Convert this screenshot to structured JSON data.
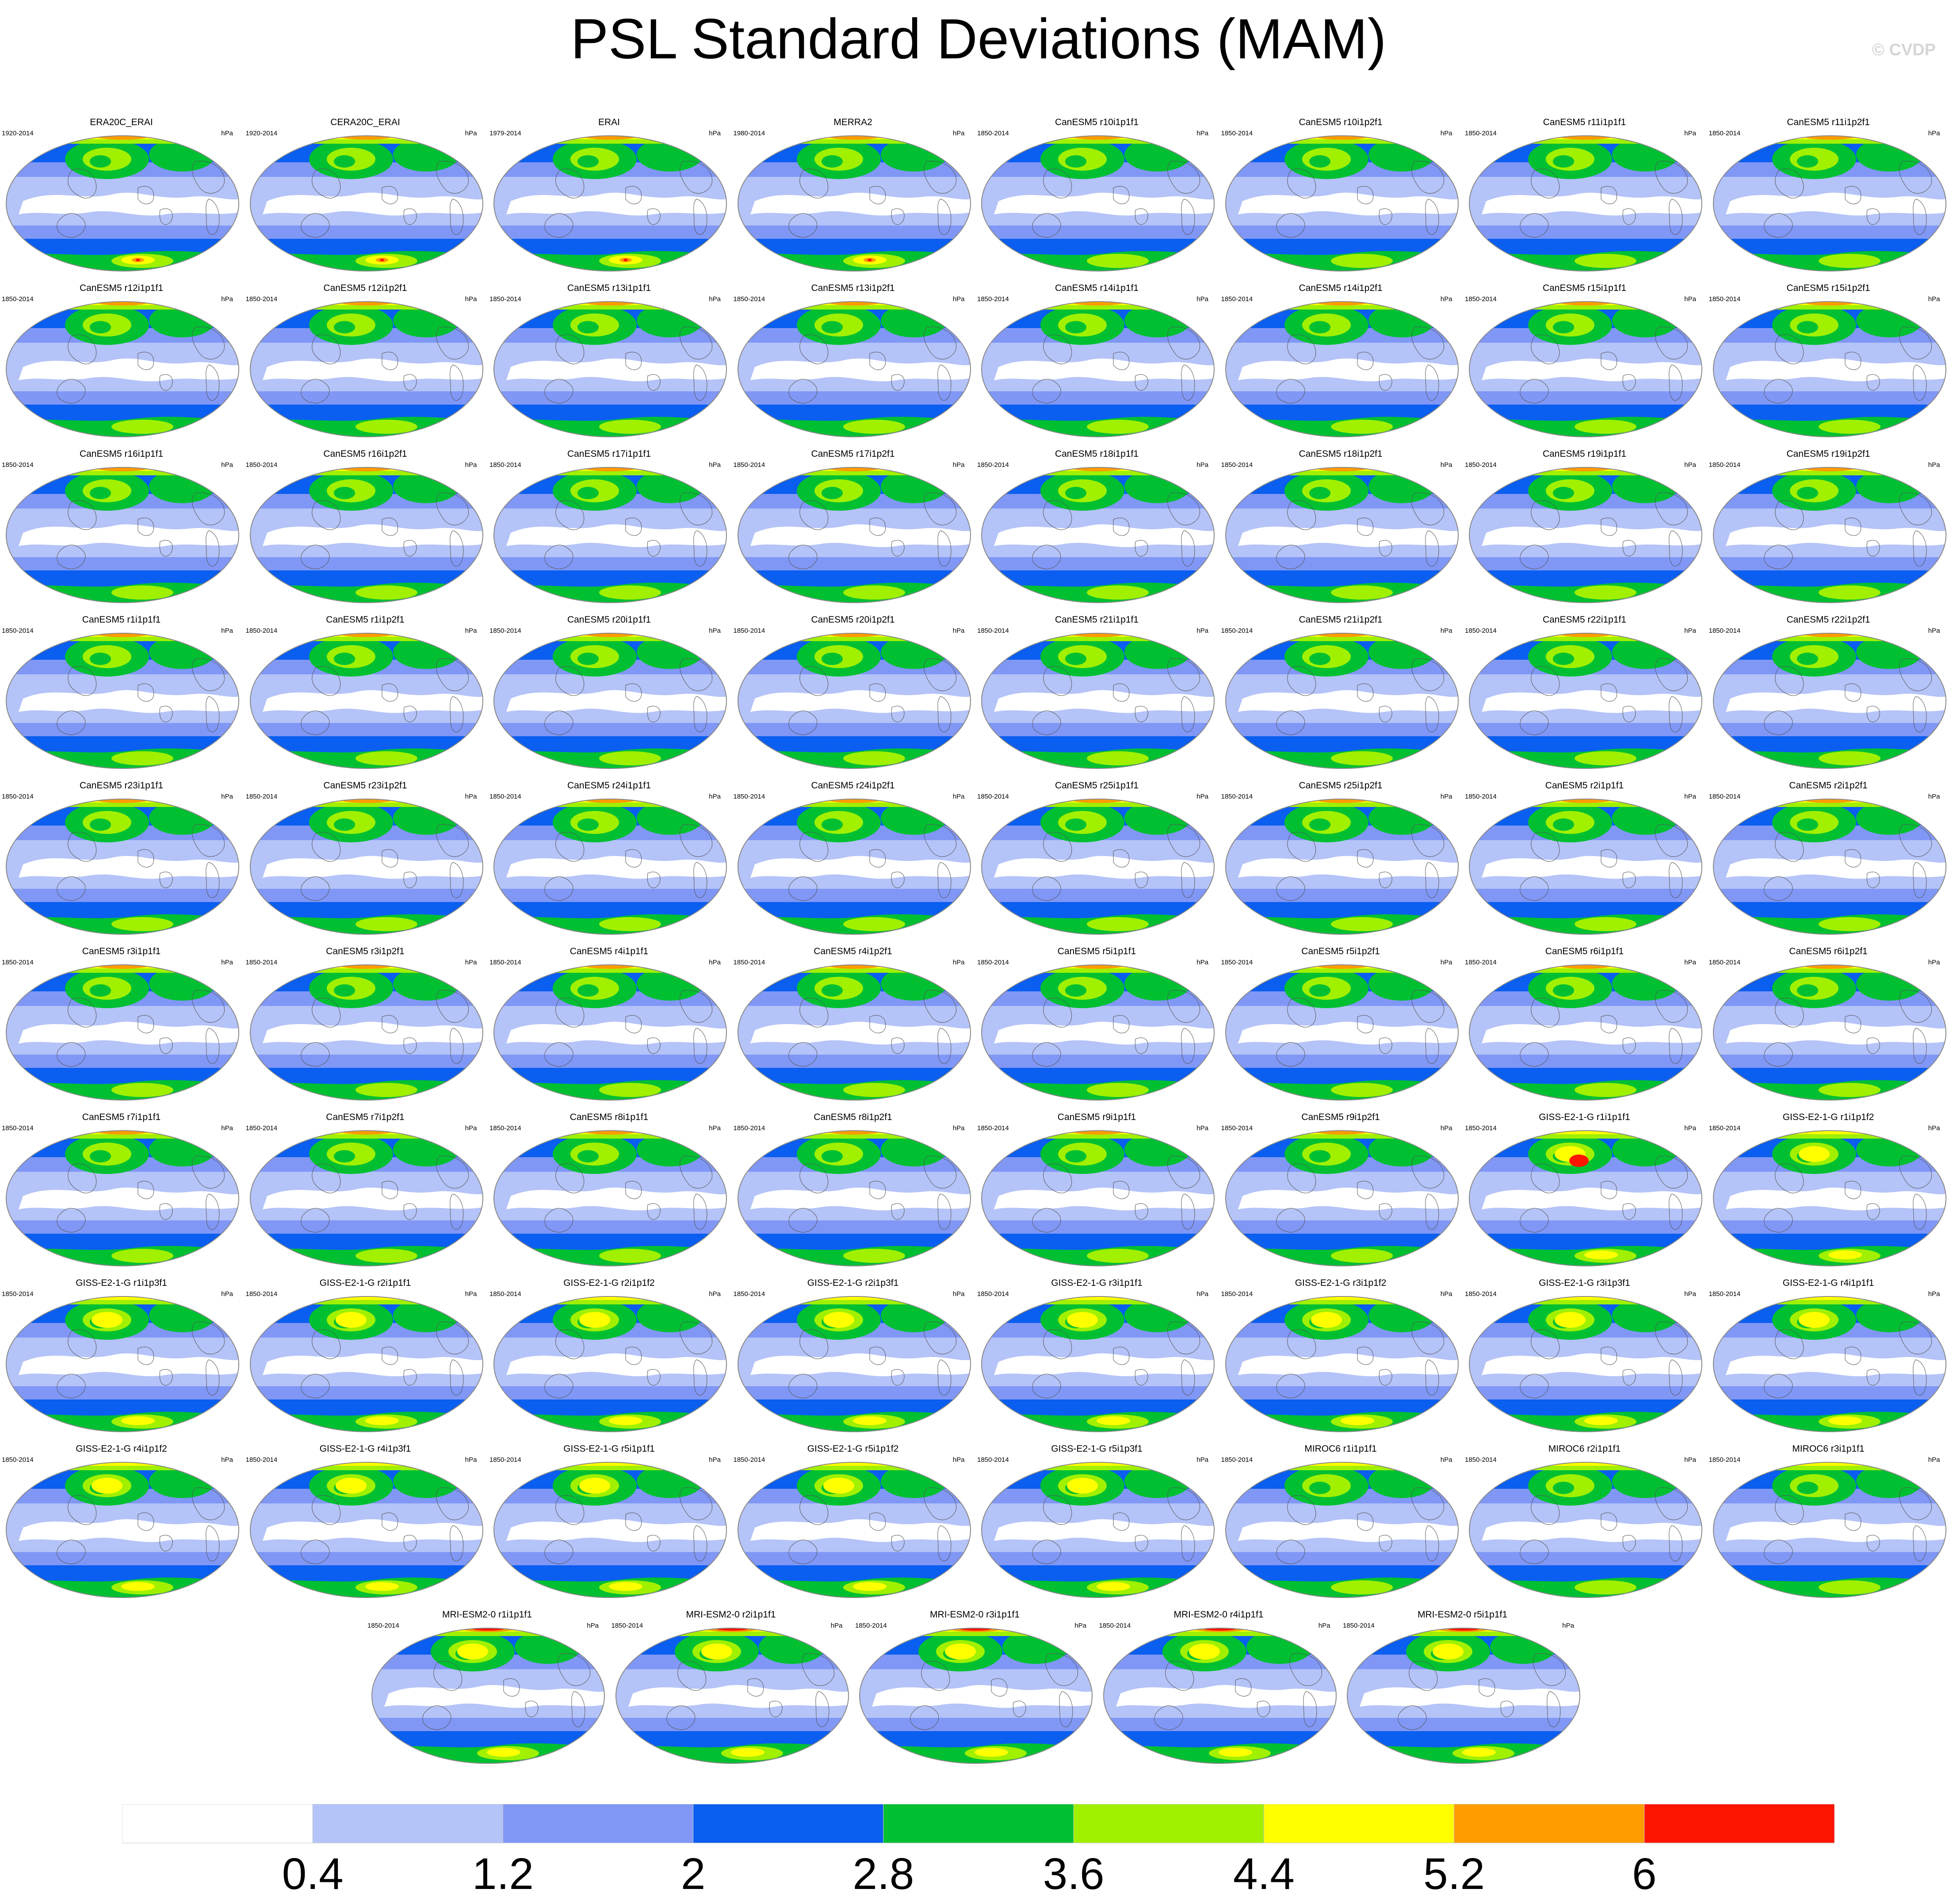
{
  "title": "PSL Standard Deviations (MAM)",
  "watermark": "© CVDP",
  "units": "hPa",
  "colorbar": {
    "colors": [
      "#ffffff",
      "#b4c3f8",
      "#8097f6",
      "#0a5ef0",
      "#00c032",
      "#a0f000",
      "#ffff00",
      "#ff9c00",
      "#ff1400"
    ],
    "labels": [
      "0.4",
      "1.2",
      "2",
      "2.8",
      "3.6",
      "4.4",
      "5.2",
      "6"
    ]
  },
  "panels": [
    {
      "name": "ERA20C_ERAI",
      "years": "1920-2014",
      "type": "obs"
    },
    {
      "name": "CERA20C_ERAI",
      "years": "1920-2014",
      "type": "obs"
    },
    {
      "name": "ERAI",
      "years": "1979-2014",
      "type": "obs"
    },
    {
      "name": "MERRA2",
      "years": "1980-2014",
      "type": "obs"
    },
    {
      "name": "CanESM5 r10i1p1f1",
      "years": "1850-2014",
      "type": "can"
    },
    {
      "name": "CanESM5 r10i1p2f1",
      "years": "1850-2014",
      "type": "can"
    },
    {
      "name": "CanESM5 r11i1p1f1",
      "years": "1850-2014",
      "type": "can"
    },
    {
      "name": "CanESM5 r11i1p2f1",
      "years": "1850-2014",
      "type": "can"
    },
    {
      "name": "CanESM5 r12i1p1f1",
      "years": "1850-2014",
      "type": "can"
    },
    {
      "name": "CanESM5 r12i1p2f1",
      "years": "1850-2014",
      "type": "can"
    },
    {
      "name": "CanESM5 r13i1p1f1",
      "years": "1850-2014",
      "type": "can"
    },
    {
      "name": "CanESM5 r13i1p2f1",
      "years": "1850-2014",
      "type": "can"
    },
    {
      "name": "CanESM5 r14i1p1f1",
      "years": "1850-2014",
      "type": "can"
    },
    {
      "name": "CanESM5 r14i1p2f1",
      "years": "1850-2014",
      "type": "can"
    },
    {
      "name": "CanESM5 r15i1p1f1",
      "years": "1850-2014",
      "type": "can"
    },
    {
      "name": "CanESM5 r15i1p2f1",
      "years": "1850-2014",
      "type": "can"
    },
    {
      "name": "CanESM5 r16i1p1f1",
      "years": "1850-2014",
      "type": "can"
    },
    {
      "name": "CanESM5 r16i1p2f1",
      "years": "1850-2014",
      "type": "can"
    },
    {
      "name": "CanESM5 r17i1p1f1",
      "years": "1850-2014",
      "type": "can"
    },
    {
      "name": "CanESM5 r17i1p2f1",
      "years": "1850-2014",
      "type": "can"
    },
    {
      "name": "CanESM5 r18i1p1f1",
      "years": "1850-2014",
      "type": "can"
    },
    {
      "name": "CanESM5 r18i1p2f1",
      "years": "1850-2014",
      "type": "can"
    },
    {
      "name": "CanESM5 r19i1p1f1",
      "years": "1850-2014",
      "type": "can"
    },
    {
      "name": "CanESM5 r19i1p2f1",
      "years": "1850-2014",
      "type": "can"
    },
    {
      "name": "CanESM5 r1i1p1f1",
      "years": "1850-2014",
      "type": "can"
    },
    {
      "name": "CanESM5 r1i1p2f1",
      "years": "1850-2014",
      "type": "can"
    },
    {
      "name": "CanESM5 r20i1p1f1",
      "years": "1850-2014",
      "type": "can"
    },
    {
      "name": "CanESM5 r20i1p2f1",
      "years": "1850-2014",
      "type": "can"
    },
    {
      "name": "CanESM5 r21i1p1f1",
      "years": "1850-2014",
      "type": "can"
    },
    {
      "name": "CanESM5 r21i1p2f1",
      "years": "1850-2014",
      "type": "can"
    },
    {
      "name": "CanESM5 r22i1p1f1",
      "years": "1850-2014",
      "type": "can"
    },
    {
      "name": "CanESM5 r22i1p2f1",
      "years": "1850-2014",
      "type": "can"
    },
    {
      "name": "CanESM5 r23i1p1f1",
      "years": "1850-2014",
      "type": "can"
    },
    {
      "name": "CanESM5 r23i1p2f1",
      "years": "1850-2014",
      "type": "can"
    },
    {
      "name": "CanESM5 r24i1p1f1",
      "years": "1850-2014",
      "type": "can"
    },
    {
      "name": "CanESM5 r24i1p2f1",
      "years": "1850-2014",
      "type": "can"
    },
    {
      "name": "CanESM5 r25i1p1f1",
      "years": "1850-2014",
      "type": "can"
    },
    {
      "name": "CanESM5 r25i1p2f1",
      "years": "1850-2014",
      "type": "can"
    },
    {
      "name": "CanESM5 r2i1p1f1",
      "years": "1850-2014",
      "type": "can"
    },
    {
      "name": "CanESM5 r2i1p2f1",
      "years": "1850-2014",
      "type": "can"
    },
    {
      "name": "CanESM5 r3i1p1f1",
      "years": "1850-2014",
      "type": "can"
    },
    {
      "name": "CanESM5 r3i1p2f1",
      "years": "1850-2014",
      "type": "can"
    },
    {
      "name": "CanESM5 r4i1p1f1",
      "years": "1850-2014",
      "type": "can"
    },
    {
      "name": "CanESM5 r4i1p2f1",
      "years": "1850-2014",
      "type": "can"
    },
    {
      "name": "CanESM5 r5i1p1f1",
      "years": "1850-2014",
      "type": "can"
    },
    {
      "name": "CanESM5 r5i1p2f1",
      "years": "1850-2014",
      "type": "can"
    },
    {
      "name": "CanESM5 r6i1p1f1",
      "years": "1850-2014",
      "type": "can"
    },
    {
      "name": "CanESM5 r6i1p2f1",
      "years": "1850-2014",
      "type": "can"
    },
    {
      "name": "CanESM5 r7i1p1f1",
      "years": "1850-2014",
      "type": "can"
    },
    {
      "name": "CanESM5 r7i1p2f1",
      "years": "1850-2014",
      "type": "can"
    },
    {
      "name": "CanESM5 r8i1p1f1",
      "years": "1850-2014",
      "type": "can"
    },
    {
      "name": "CanESM5 r8i1p2f1",
      "years": "1850-2014",
      "type": "can"
    },
    {
      "name": "CanESM5 r9i1p1f1",
      "years": "1850-2014",
      "type": "can"
    },
    {
      "name": "CanESM5 r9i1p2f1",
      "years": "1850-2014",
      "type": "can"
    },
    {
      "name": "GISS-E2-1-G r1i1p1f1",
      "years": "1850-2014",
      "type": "giss"
    },
    {
      "name": "GISS-E2-1-G r1i1p1f2",
      "years": "1850-2014",
      "type": "giss"
    },
    {
      "name": "GISS-E2-1-G r1i1p3f1",
      "years": "1850-2014",
      "type": "giss"
    },
    {
      "name": "GISS-E2-1-G r2i1p1f1",
      "years": "1850-2014",
      "type": "giss"
    },
    {
      "name": "GISS-E2-1-G r2i1p1f2",
      "years": "1850-2014",
      "type": "giss"
    },
    {
      "name": "GISS-E2-1-G r2i1p3f1",
      "years": "1850-2014",
      "type": "giss"
    },
    {
      "name": "GISS-E2-1-G r3i1p1f1",
      "years": "1850-2014",
      "type": "giss"
    },
    {
      "name": "GISS-E2-1-G r3i1p1f2",
      "years": "1850-2014",
      "type": "giss"
    },
    {
      "name": "GISS-E2-1-G r3i1p3f1",
      "years": "1850-2014",
      "type": "giss"
    },
    {
      "name": "GISS-E2-1-G r4i1p1f1",
      "years": "1850-2014",
      "type": "giss"
    },
    {
      "name": "GISS-E2-1-G r4i1p1f2",
      "years": "1850-2014",
      "type": "giss"
    },
    {
      "name": "GISS-E2-1-G r4i1p3f1",
      "years": "1850-2014",
      "type": "giss"
    },
    {
      "name": "GISS-E2-1-G r5i1p1f1",
      "years": "1850-2014",
      "type": "giss"
    },
    {
      "name": "GISS-E2-1-G r5i1p1f2",
      "years": "1850-2014",
      "type": "giss"
    },
    {
      "name": "GISS-E2-1-G r5i1p3f1",
      "years": "1850-2014",
      "type": "giss"
    },
    {
      "name": "MIROC6 r1i1p1f1",
      "years": "1850-2014",
      "type": "miroc"
    },
    {
      "name": "MIROC6 r2i1p1f1",
      "years": "1850-2014",
      "type": "miroc"
    },
    {
      "name": "MIROC6 r3i1p1f1",
      "years": "1850-2014",
      "type": "miroc"
    },
    {
      "name": "MRI-ESM2-0 r1i1p1f1",
      "years": "1850-2014",
      "type": "mri"
    },
    {
      "name": "MRI-ESM2-0 r2i1p1f1",
      "years": "1850-2014",
      "type": "mri"
    },
    {
      "name": "MRI-ESM2-0 r3i1p1f1",
      "years": "1850-2014",
      "type": "mri"
    },
    {
      "name": "MRI-ESM2-0 r4i1p1f1",
      "years": "1850-2014",
      "type": "mri"
    },
    {
      "name": "MRI-ESM2-0 r5i1p1f1",
      "years": "1850-2014",
      "type": "mri"
    }
  ]
}
